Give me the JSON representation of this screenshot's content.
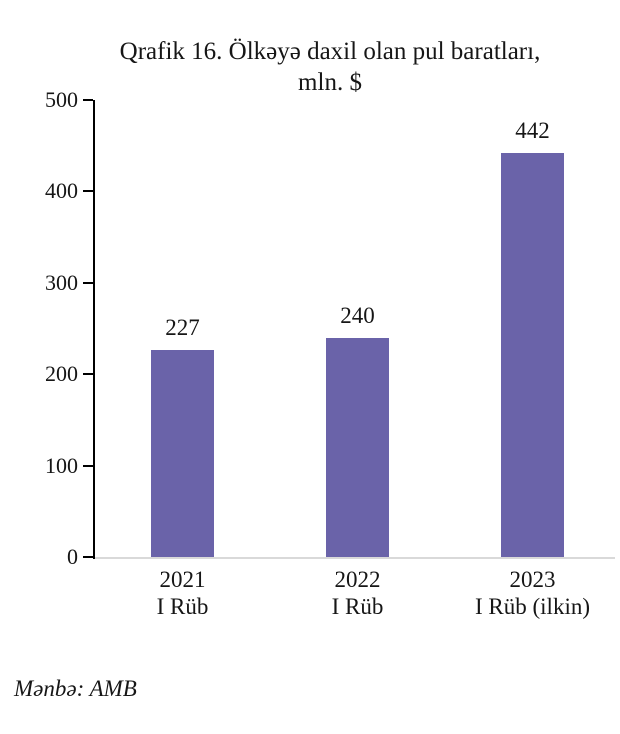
{
  "chart_data": {
    "type": "bar",
    "title_line1": "Qrafik 16. Ölkəyə daxil olan pul baratları,",
    "title_line2": "mln. $",
    "categories": [
      {
        "line1": "2021",
        "line2": "I Rüb"
      },
      {
        "line1": "2022",
        "line2": "I Rüb"
      },
      {
        "line1": "2023",
        "line2": "I Rüb (ilkin)"
      }
    ],
    "values": [
      227,
      240,
      442
    ],
    "value_labels": [
      "227",
      "240",
      "442"
    ],
    "ylim": [
      0,
      500
    ],
    "yticks": [
      0,
      100,
      200,
      300,
      400,
      500
    ],
    "grid": "off",
    "legend": "none",
    "colors": {
      "bar": "#6A63A9",
      "axis": "#000000",
      "baseline": "#D9D9D9",
      "text": "#161616"
    }
  },
  "source_note": "Mənbə: AMB"
}
